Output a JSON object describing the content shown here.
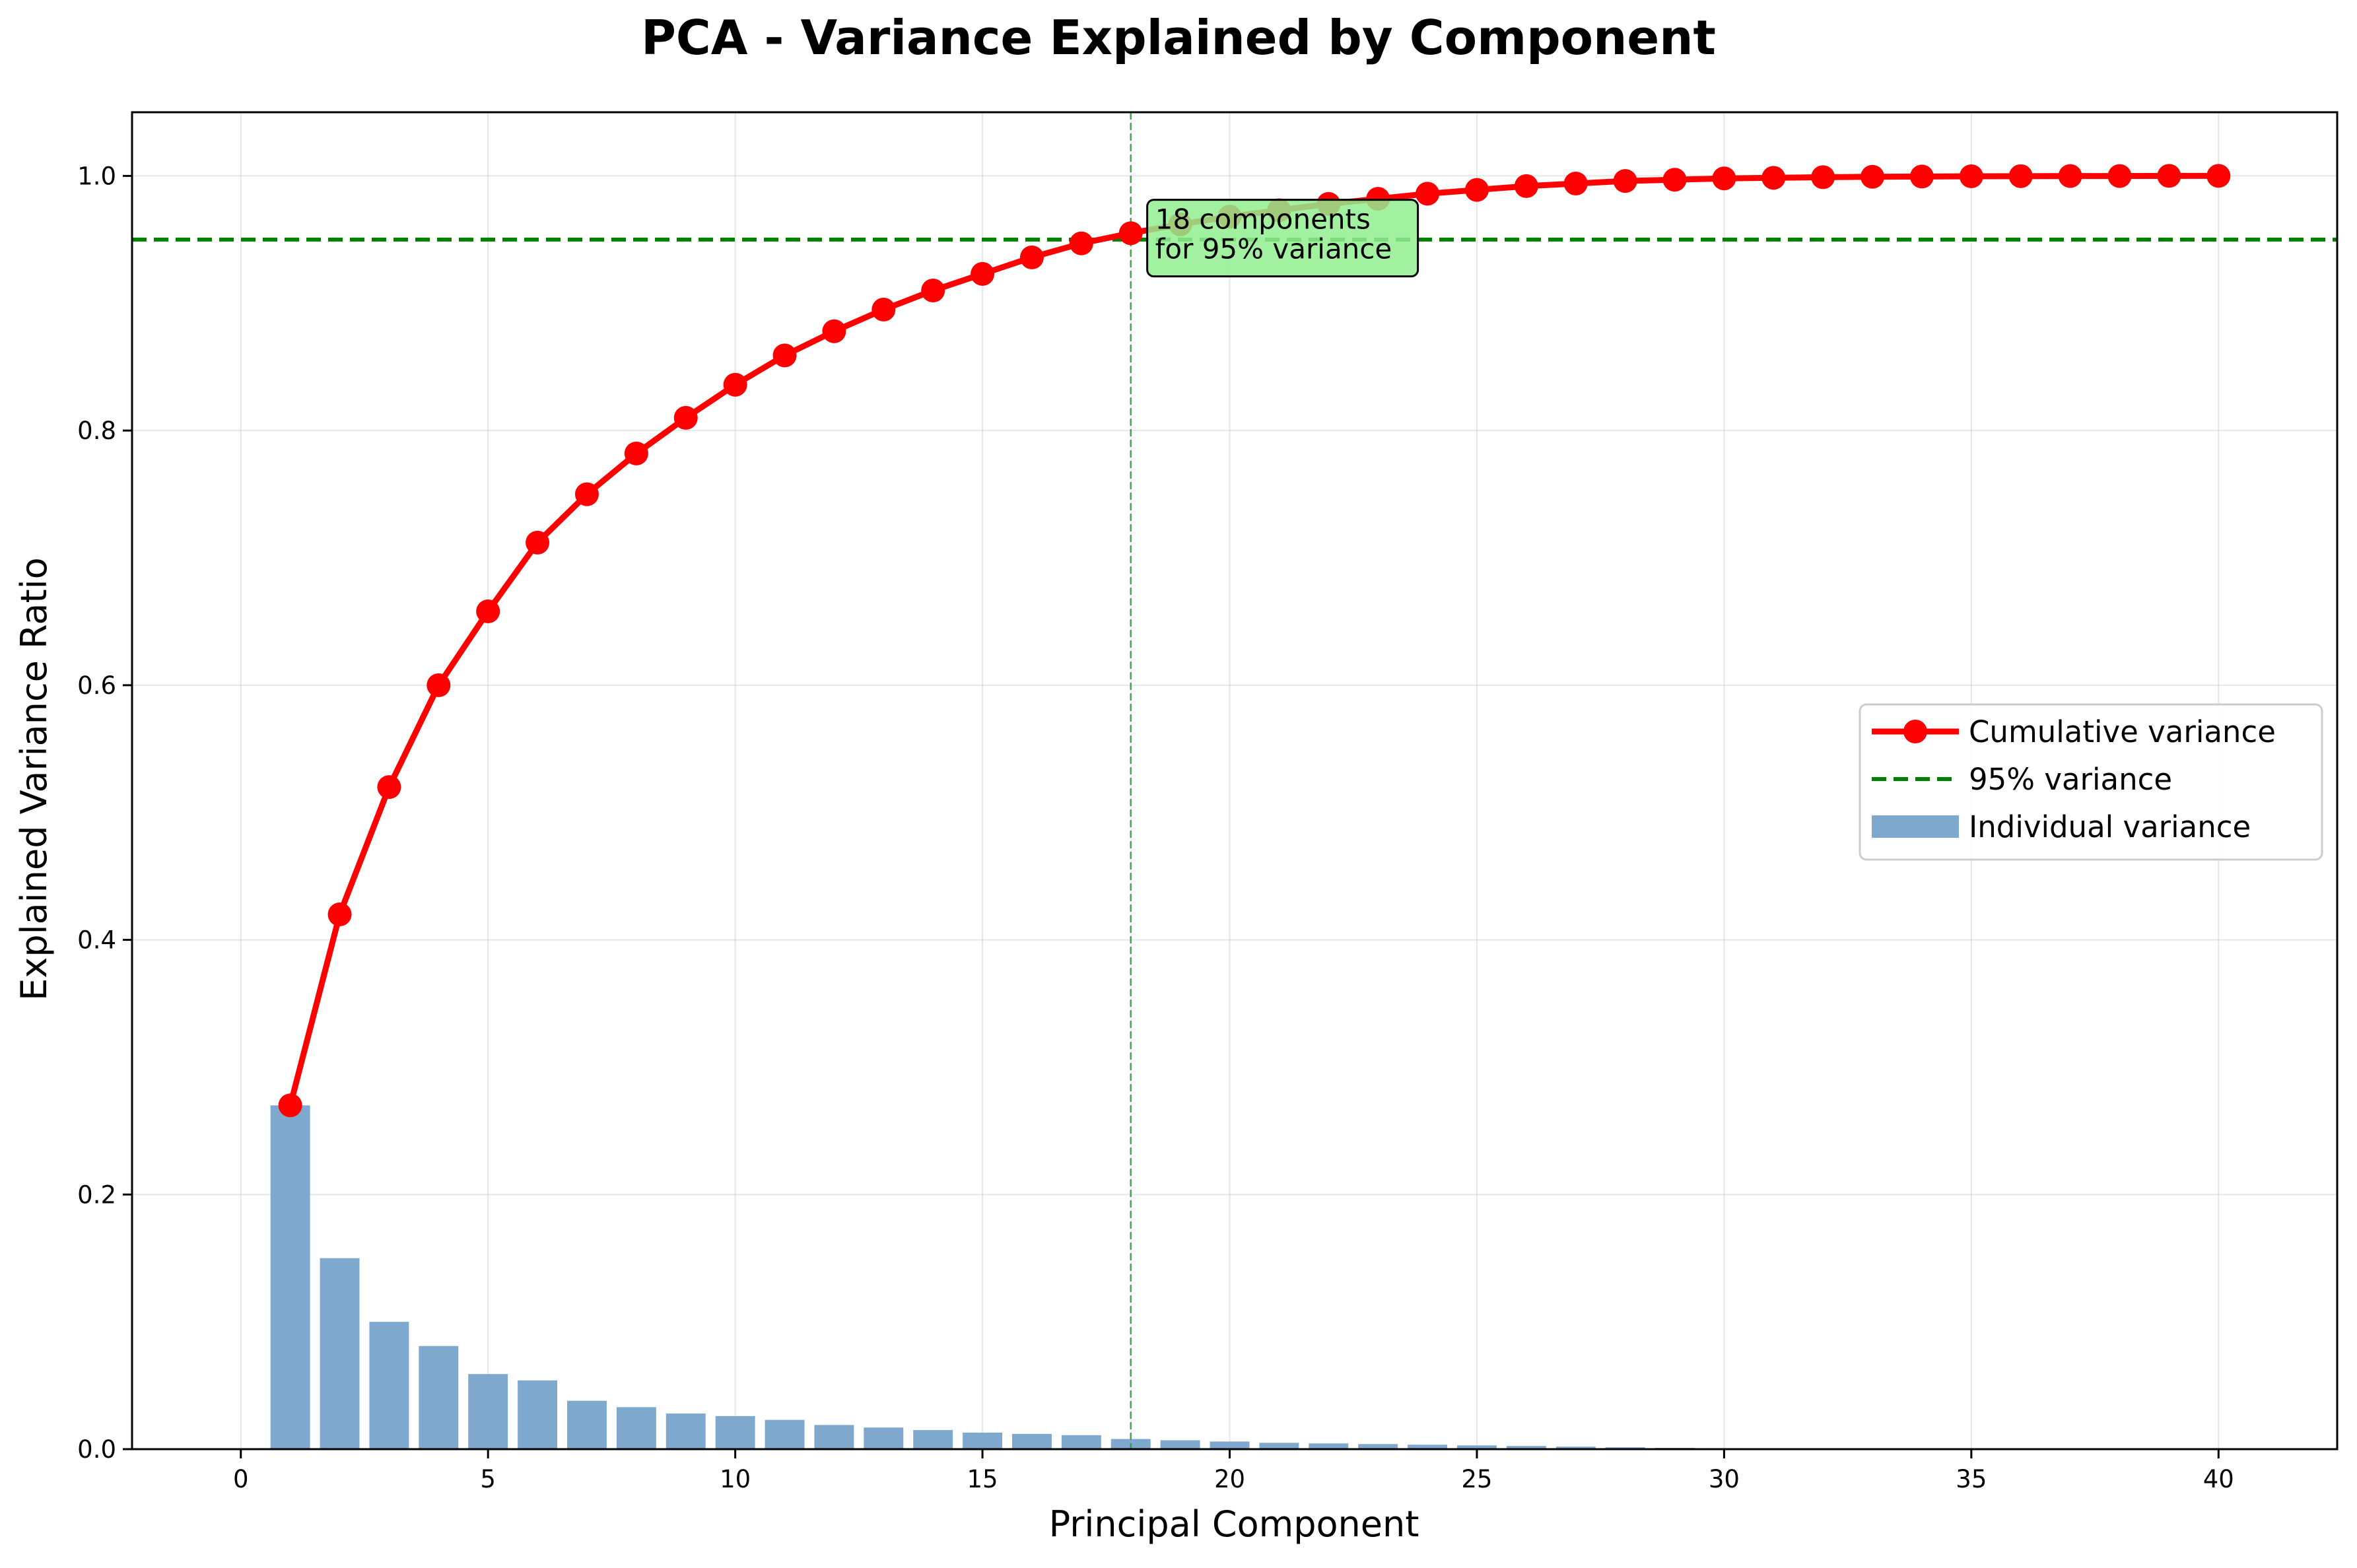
{
  "chart_data": {
    "type": "bar+line",
    "title": "PCA - Variance Explained by Component",
    "xlabel": "Principal Component",
    "ylabel": "Explained Variance Ratio",
    "xlim": [
      -2.2,
      42.4
    ],
    "ylim": [
      0,
      1.05
    ],
    "x_ticks": [
      0,
      5,
      10,
      15,
      20,
      25,
      30,
      35,
      40
    ],
    "x_tick_labels": [
      "0",
      "5",
      "10",
      "15",
      "20",
      "25",
      "30",
      "35",
      "40"
    ],
    "y_ticks": [
      0.0,
      0.2,
      0.4,
      0.6,
      0.8,
      1.0
    ],
    "y_tick_labels": [
      "0.0",
      "0.2",
      "0.4",
      "0.6",
      "0.8",
      "1.0"
    ],
    "grid": true,
    "legend_position": "center-right",
    "components": [
      1,
      2,
      3,
      4,
      5,
      6,
      7,
      8,
      9,
      10,
      11,
      12,
      13,
      14,
      15,
      16,
      17,
      18,
      19,
      20,
      21,
      22,
      23,
      24,
      25,
      26,
      27,
      28,
      29,
      30,
      31,
      32,
      33,
      34,
      35,
      36,
      37,
      38,
      39,
      40
    ],
    "series": [
      {
        "name": "Cumulative variance",
        "kind": "line",
        "color": "#ff0000",
        "values": [
          0.27,
          0.42,
          0.52,
          0.6,
          0.658,
          0.712,
          0.75,
          0.782,
          0.81,
          0.836,
          0.859,
          0.878,
          0.895,
          0.91,
          0.923,
          0.936,
          0.947,
          0.955,
          0.962,
          0.968,
          0.973,
          0.978,
          0.982,
          0.986,
          0.989,
          0.992,
          0.994,
          0.996,
          0.997,
          0.998,
          0.9985,
          0.999,
          0.9993,
          0.9995,
          0.9997,
          0.9998,
          0.9999,
          0.9999,
          1.0,
          1.0
        ]
      },
      {
        "name": "95% variance",
        "kind": "hline",
        "color": "#008000",
        "value": 0.95
      },
      {
        "name": "Individual variance",
        "kind": "bar",
        "color": "#7ea8cd",
        "values": [
          0.27,
          0.15,
          0.1,
          0.081,
          0.059,
          0.054,
          0.038,
          0.033,
          0.028,
          0.026,
          0.023,
          0.019,
          0.017,
          0.015,
          0.013,
          0.012,
          0.011,
          0.008,
          0.007,
          0.006,
          0.005,
          0.0045,
          0.004,
          0.0035,
          0.003,
          0.0025,
          0.002,
          0.0015,
          0.001,
          0.0008,
          0.0005,
          0.0004,
          0.0003,
          0.0002,
          0.0002,
          0.0001,
          0.0001,
          0.0001,
          0.0,
          0.0
        ]
      }
    ],
    "vline": {
      "x": 18,
      "color": "#2ca02c"
    },
    "annotation": {
      "lines": [
        "18 components",
        "for 95% variance"
      ],
      "x": 19,
      "y": 0.95,
      "box_color": "#90ee90"
    }
  }
}
